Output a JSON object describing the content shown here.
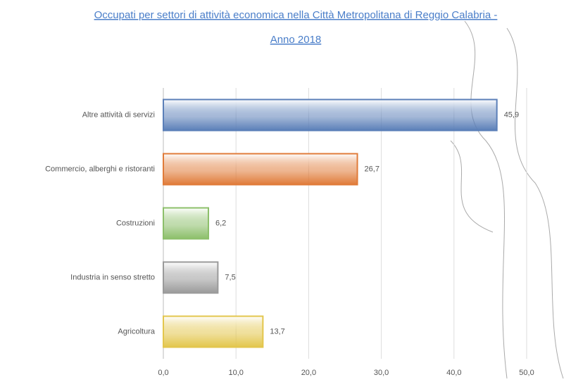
{
  "chart_data": {
    "type": "bar",
    "orientation": "horizontal",
    "title": [
      "Occupati per settori di attività economica nella Città Metropolitana di Reggio Calabria -",
      "Anno 2018"
    ],
    "categories": [
      "Altre attività di servizi",
      "Commercio, alberghi e ristoranti",
      "Costruzioni",
      "Industria in senso stretto",
      "Agricoltura"
    ],
    "values": [
      45.9,
      26.7,
      6.2,
      7.5,
      13.7
    ],
    "value_labels": [
      "45,9",
      "26,7",
      "6,2",
      "7,5",
      "13,7"
    ],
    "colors": [
      "#5b7fb8",
      "#e07b39",
      "#8cbf6a",
      "#9a9a9a",
      "#e3c64c"
    ],
    "xlim": [
      0,
      50
    ],
    "xticks": [
      {
        "value": 0,
        "label": "0,0"
      },
      {
        "value": 10,
        "label": "10,0"
      },
      {
        "value": 20,
        "label": "20,0"
      },
      {
        "value": 30,
        "label": "30,0"
      },
      {
        "value": 40,
        "label": "40,0"
      },
      {
        "value": 50,
        "label": "50,0"
      }
    ],
    "grid": true
  }
}
